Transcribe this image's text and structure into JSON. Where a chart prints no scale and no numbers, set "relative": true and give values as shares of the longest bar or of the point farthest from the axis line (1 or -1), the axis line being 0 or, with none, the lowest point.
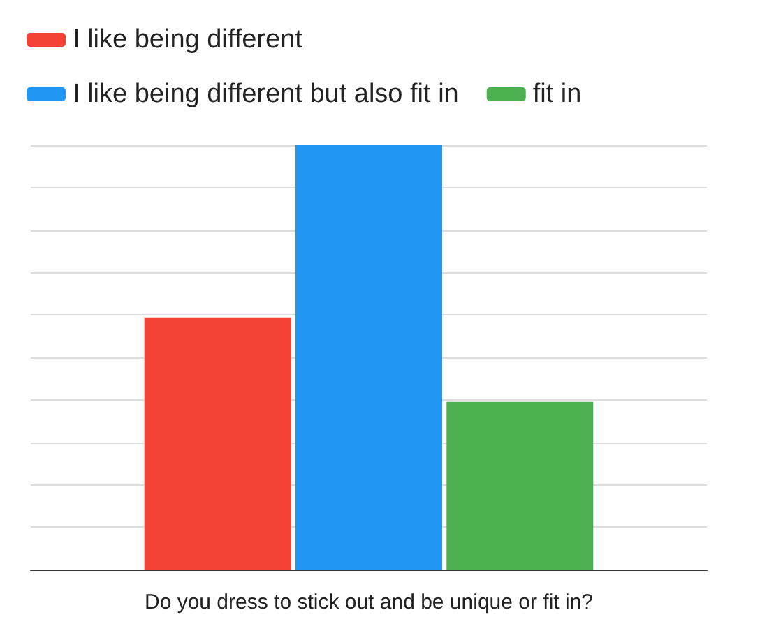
{
  "chart_data": {
    "type": "bar",
    "relative": true,
    "xlabel": "Do you dress to stick out and be unique or fit in?",
    "categories": [
      null
    ],
    "series": [
      {
        "name": "I like being different",
        "color": "#f44336",
        "values": [
          0.594
        ]
      },
      {
        "name": "I like being different but also fit in",
        "color": "#2196f3",
        "values": [
          1
        ]
      },
      {
        "name": "fit in",
        "color": "#4caf50",
        "values": [
          0.395
        ]
      }
    ],
    "grid": "y",
    "legend": "top left"
  }
}
